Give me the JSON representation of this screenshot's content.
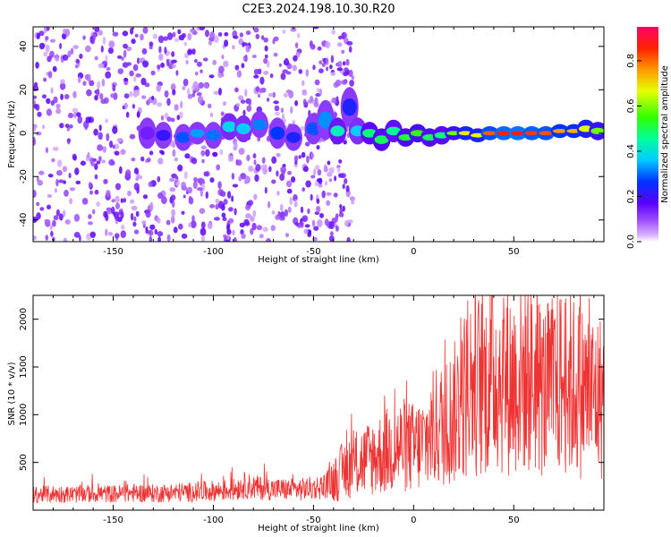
{
  "figure_title": "C2E3.2024.198.10.30.R20",
  "chart_data": [
    {
      "type": "heatmap",
      "xlabel": "Height of straight line (km)",
      "ylabel": "Frequency (Hz)",
      "xlim": [
        -190,
        95
      ],
      "ylim": [
        -50,
        49
      ],
      "x_ticks": [
        -150,
        -100,
        -50,
        0,
        50
      ],
      "y_ticks": [
        -40,
        -20,
        0,
        20,
        40
      ],
      "grid": false,
      "colorbar": {
        "label": "Normalized spectral amplitude",
        "range": [
          0.0,
          0.95
        ],
        "ticks": [
          0.0,
          0.2,
          0.4,
          0.6,
          0.8
        ],
        "tick_labels": [
          "0.0",
          "0.2",
          "0.4",
          "0.6",
          "0.8"
        ],
        "colormap": "rainbow"
      },
      "cells": [
        {
          "x": -133,
          "y": 0,
          "value": 0.15,
          "spread": 6
        },
        {
          "x": -125,
          "y": -1,
          "value": 0.22,
          "spread": 5
        },
        {
          "x": -115,
          "y": -2,
          "value": 0.3,
          "spread": 5
        },
        {
          "x": -108,
          "y": 0,
          "value": 0.35,
          "spread": 4
        },
        {
          "x": -100,
          "y": -1,
          "value": 0.32,
          "spread": 5
        },
        {
          "x": -92,
          "y": 3,
          "value": 0.4,
          "spread": 5
        },
        {
          "x": -85,
          "y": 2,
          "value": 0.38,
          "spread": 5
        },
        {
          "x": -77,
          "y": 4,
          "value": 0.33,
          "spread": 5
        },
        {
          "x": -68,
          "y": 0,
          "value": 0.28,
          "spread": 6
        },
        {
          "x": -60,
          "y": -2,
          "value": 0.25,
          "spread": 5
        },
        {
          "x": -50,
          "y": 2,
          "value": 0.3,
          "spread": 6
        },
        {
          "x": -44,
          "y": 6,
          "value": 0.34,
          "spread": 8
        },
        {
          "x": -38,
          "y": 1,
          "value": 0.45,
          "spread": 5
        },
        {
          "x": -32,
          "y": 12,
          "value": 0.25,
          "spread": 8
        },
        {
          "x": -28,
          "y": 1,
          "value": 0.38,
          "spread": 5
        },
        {
          "x": -22,
          "y": 0,
          "value": 0.5,
          "spread": 4
        },
        {
          "x": -16,
          "y": -3,
          "value": 0.52,
          "spread": 4
        },
        {
          "x": -10,
          "y": 1,
          "value": 0.48,
          "spread": 4
        },
        {
          "x": -4,
          "y": -2,
          "value": 0.55,
          "spread": 3
        },
        {
          "x": 2,
          "y": 0,
          "value": 0.58,
          "spread": 3
        },
        {
          "x": 8,
          "y": -2,
          "value": 0.52,
          "spread": 3
        },
        {
          "x": 14,
          "y": -1,
          "value": 0.5,
          "spread": 3
        },
        {
          "x": 20,
          "y": 0,
          "value": 0.62,
          "spread": 2
        },
        {
          "x": 26,
          "y": 0,
          "value": 0.72,
          "spread": 2
        },
        {
          "x": 32,
          "y": -1,
          "value": 0.7,
          "spread": 2
        },
        {
          "x": 38,
          "y": 0,
          "value": 0.85,
          "spread": 2
        },
        {
          "x": 45,
          "y": 0,
          "value": 0.9,
          "spread": 2
        },
        {
          "x": 52,
          "y": 0,
          "value": 0.92,
          "spread": 2
        },
        {
          "x": 59,
          "y": 0,
          "value": 0.88,
          "spread": 2
        },
        {
          "x": 66,
          "y": 0,
          "value": 0.86,
          "spread": 2
        },
        {
          "x": 73,
          "y": 1,
          "value": 0.8,
          "spread": 2
        },
        {
          "x": 80,
          "y": 1,
          "value": 0.78,
          "spread": 2
        },
        {
          "x": 86,
          "y": 2,
          "value": 0.7,
          "spread": 3
        },
        {
          "x": 92,
          "y": 1,
          "value": 0.62,
          "spread": 3
        }
      ]
    },
    {
      "type": "line",
      "xlabel": "Height of straight line (km)",
      "ylabel": "SNR (10 * v/v)",
      "xlim": [
        -190,
        95
      ],
      "ylim": [
        0,
        2250
      ],
      "x_ticks": [
        -150,
        -100,
        -50,
        0,
        50
      ],
      "y_ticks": [
        500,
        1000,
        1500,
        2000
      ],
      "grid": false,
      "series": [
        {
          "color": "#ee3333",
          "x": [
            -190,
            -180,
            -170,
            -160,
            -150,
            -140,
            -130,
            -120,
            -110,
            -100,
            -90,
            -85,
            -80,
            -70,
            -60,
            -50,
            -45,
            -40,
            -35,
            -30,
            -25,
            -20,
            -15,
            -10,
            -5,
            0,
            5,
            10,
            15,
            20,
            25,
            30,
            35,
            40,
            45,
            50,
            55,
            60,
            65,
            70,
            75,
            80,
            85,
            90,
            95
          ],
          "y": [
            160,
            170,
            165,
            175,
            170,
            180,
            175,
            185,
            190,
            200,
            215,
            260,
            240,
            220,
            215,
            230,
            250,
            320,
            420,
            480,
            520,
            560,
            600,
            650,
            680,
            650,
            700,
            850,
            900,
            1000,
            1200,
            1350,
            1300,
            1450,
            1380,
            1350,
            1420,
            1380,
            1250,
            1300,
            1350,
            1300,
            1250,
            1200,
            1180
          ]
        }
      ]
    }
  ]
}
